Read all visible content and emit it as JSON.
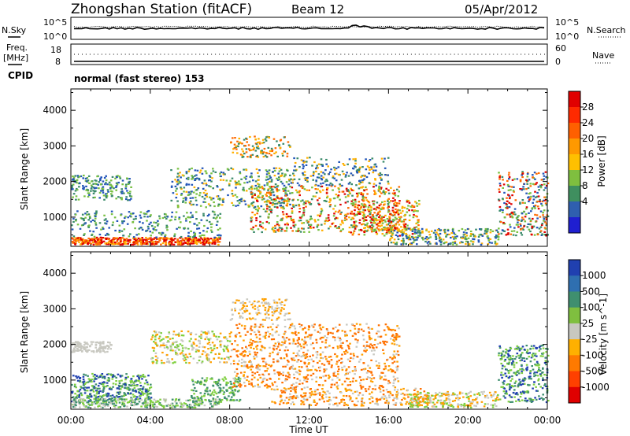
{
  "header": {
    "station": "Zhongshan Station (fitACF)",
    "beam": "Beam 12",
    "date": "05/Apr/2012"
  },
  "noise_panel": {
    "left_label": "N.Sky",
    "right_label": "N.Search",
    "left_ticks": [
      "10^5",
      "10^0"
    ],
    "right_ticks": [
      "10^5",
      "10^0"
    ]
  },
  "freq_panel": {
    "left_label_line1": "Freq.",
    "left_label_line2": "[MHz]",
    "left_ticks": [
      "18",
      "8"
    ],
    "right_label": "Nave",
    "right_ticks": [
      "60",
      "0"
    ],
    "cpid_label": "CPID",
    "mode_text": "normal (fast stereo) 153"
  },
  "chart_data": [
    {
      "type": "heatmap",
      "name": "Power",
      "ylabel": "Slant Range [km]",
      "xlabel": "Time UT",
      "x_ticks": [
        "00:00",
        "04:00",
        "08:00",
        "12:00",
        "16:00",
        "20:00",
        "00:00"
      ],
      "x_hours": [
        0,
        4,
        8,
        12,
        16,
        20,
        24
      ],
      "xlim": [
        0,
        24
      ],
      "y_ticks": [
        1000,
        2000,
        3000,
        4000
      ],
      "ylim": [
        180,
        4600
      ],
      "colorbar_label": "Power [dB]",
      "colorbar_ticks": [
        "28",
        "24",
        "20",
        "16",
        "12",
        "8",
        "4"
      ],
      "colorbar_colors": [
        "#e00000",
        "#ff2a00",
        "#ff6000",
        "#ff9900",
        "#ffc000",
        "#7fbf3f",
        "#3f8f5f",
        "#2f5faf",
        "#1f1fd0"
      ],
      "colors": {
        "low": "#2255b8",
        "midlow": "#3a8a6a",
        "mid": "#78c040",
        "midhigh": "#ffb000",
        "high": "#ff6a00",
        "peak": "#e00000"
      }
    },
    {
      "type": "heatmap",
      "name": "Velocity",
      "ylabel": "Slant Range [km]",
      "xlabel": "Time UT",
      "x_ticks": [
        "00:00",
        "04:00",
        "08:00",
        "12:00",
        "16:00",
        "20:00",
        "00:00"
      ],
      "x_hours": [
        0,
        4,
        8,
        12,
        16,
        20,
        24
      ],
      "xlim": [
        0,
        24
      ],
      "y_ticks": [
        1000,
        2000,
        3000,
        4000
      ],
      "ylim": [
        180,
        4600
      ],
      "colorbar_label": "Velocity [m s^-1]",
      "colorbar_ticks": [
        "1000",
        "500",
        "100",
        "25",
        "-25",
        "-100",
        "-500",
        "-1000"
      ],
      "colorbar_colors": [
        "#2040b0",
        "#2f6fb0",
        "#3f8f6f",
        "#7fbf3f",
        "#c8c8c0",
        "#ffb000",
        "#ff7a00",
        "#ff4000",
        "#e00000"
      ],
      "colors": {
        "toward_fast": "#2040b0",
        "toward": "#3f8f6f",
        "slow": "#7fcf3f",
        "ground": "#c8c8c0",
        "away": "#ffa000",
        "away_fast": "#ff7000"
      }
    }
  ]
}
